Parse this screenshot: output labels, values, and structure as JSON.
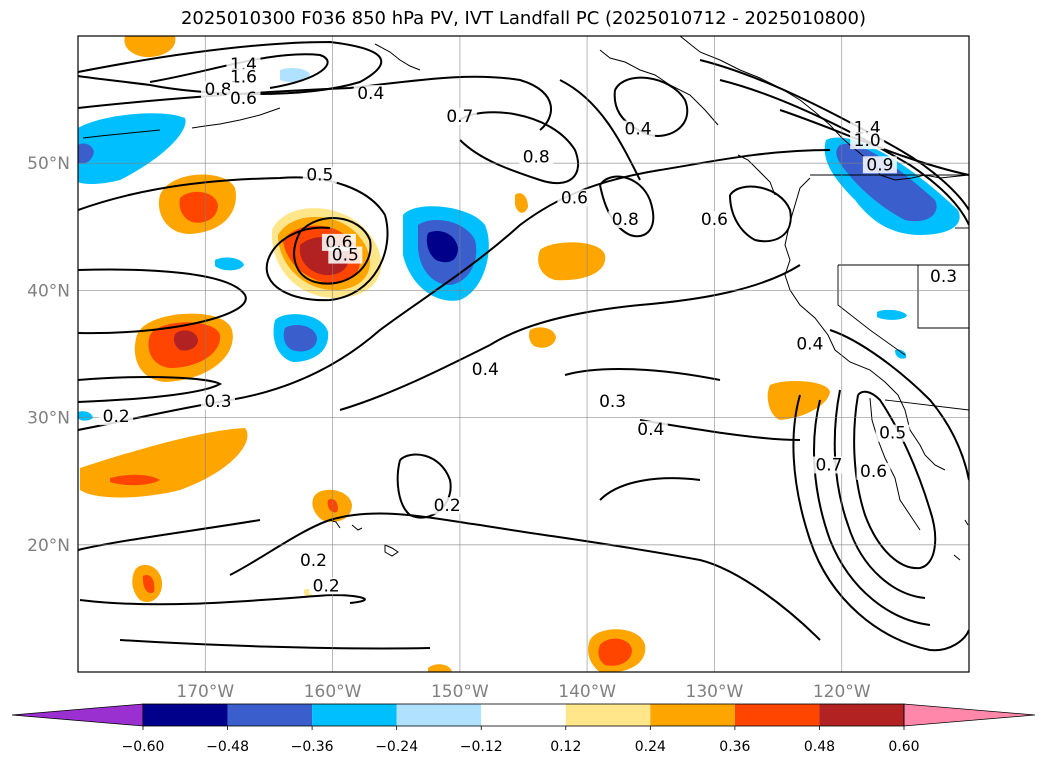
{
  "title": "2025010300 F036 850 hPa PV, IVT Landfall PC (2025010712 - 2025010800)",
  "map": {
    "lon_range": [
      -180,
      -110
    ],
    "lat_range": [
      10,
      60
    ],
    "lon_ticks": [
      -170,
      -160,
      -150,
      -140,
      -130,
      -120
    ],
    "lon_tick_labels": [
      "170°W",
      "160°W",
      "150°W",
      "140°W",
      "130°W",
      "120°W"
    ],
    "lat_ticks": [
      20,
      30,
      40,
      50
    ],
    "lat_tick_labels": [
      "20°N",
      "30°N",
      "40°N",
      "50°N"
    ],
    "grid": true
  },
  "colorbar": {
    "levels": [
      -0.6,
      -0.48,
      -0.36,
      -0.24,
      -0.12,
      0.12,
      0.24,
      0.36,
      0.48,
      0.6
    ],
    "tick_labels": [
      "−0.60",
      "−0.48",
      "−0.36",
      "−0.24",
      "−0.12",
      "0.12",
      "0.24",
      "0.36",
      "0.48",
      "0.60"
    ],
    "colors": [
      "#9b30d0",
      "#00008b",
      "#3a5fcd",
      "#00bfff",
      "#b0e2ff",
      "#ffffff",
      "#ffe68a",
      "#ffa500",
      "#ff4500",
      "#b22222",
      "#ff88aa"
    ],
    "extend": "both"
  },
  "contour_labels": [
    {
      "text": "1.4",
      "lon": -167,
      "lat": 57.5
    },
    {
      "text": "1.6",
      "lon": -167,
      "lat": 56.5
    },
    {
      "text": "0.8",
      "lon": -169,
      "lat": 55.5
    },
    {
      "text": "0.6",
      "lon": -167,
      "lat": 54.8
    },
    {
      "text": "0.4",
      "lon": -157,
      "lat": 55.2
    },
    {
      "text": "0.7",
      "lon": -150,
      "lat": 53.4
    },
    {
      "text": "0.5",
      "lon": -161,
      "lat": 48.8
    },
    {
      "text": "0.8",
      "lon": -144,
      "lat": 50.2
    },
    {
      "text": "0.6",
      "lon": -141,
      "lat": 47.0
    },
    {
      "text": "0.8",
      "lon": -137,
      "lat": 45.3
    },
    {
      "text": "0.4",
      "lon": -136,
      "lat": 52.4
    },
    {
      "text": "0.6",
      "lon": -130,
      "lat": 45.3
    },
    {
      "text": "1.4",
      "lon": -118,
      "lat": 52.5
    },
    {
      "text": "1.0",
      "lon": -118,
      "lat": 51.5
    },
    {
      "text": "0.9",
      "lon": -117,
      "lat": 49.6
    },
    {
      "text": "0.6",
      "lon": -159.5,
      "lat": 43.5
    },
    {
      "text": "0.5",
      "lon": -159,
      "lat": 42.5
    },
    {
      "text": "0.3",
      "lon": -112,
      "lat": 40.8
    },
    {
      "text": "0.4",
      "lon": -148,
      "lat": 33.5
    },
    {
      "text": "0.3",
      "lon": -169,
      "lat": 31.0
    },
    {
      "text": "0.2",
      "lon": -177,
      "lat": 29.8
    },
    {
      "text": "0.3",
      "lon": -138,
      "lat": 31.0
    },
    {
      "text": "0.4",
      "lon": -135,
      "lat": 28.8
    },
    {
      "text": "0.4",
      "lon": -122.5,
      "lat": 35.5
    },
    {
      "text": "0.7",
      "lon": -121,
      "lat": 26.0
    },
    {
      "text": "0.6",
      "lon": -117.5,
      "lat": 25.5
    },
    {
      "text": "0.5",
      "lon": -116,
      "lat": 28.5
    },
    {
      "text": "0.2",
      "lon": -151,
      "lat": 22.8
    },
    {
      "text": "0.2",
      "lon": -161.5,
      "lat": 18.5
    },
    {
      "text": "0.2",
      "lon": -160.5,
      "lat": 16.5
    }
  ]
}
